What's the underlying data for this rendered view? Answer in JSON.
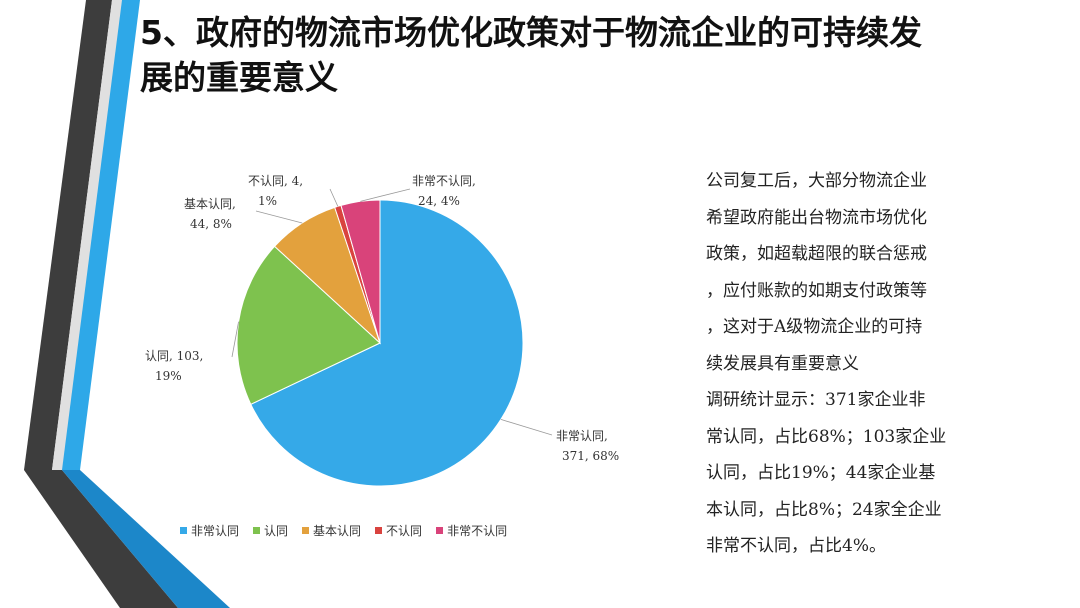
{
  "slide": {
    "title_line1": "5、政府的物流市场优化政策对于物流企业的可持续发",
    "title_line2": "展的重要意义",
    "colors": {
      "blue_accent": "#2ea8e8",
      "dark_stripe": "#3a3a3a",
      "light_stripe": "#d9d9d9"
    }
  },
  "chart_data": {
    "type": "pie",
    "categories": [
      "非常认同",
      "认同",
      "基本认同",
      "不认同",
      "非常不认同"
    ],
    "values": [
      371,
      103,
      44,
      4,
      24
    ],
    "percent_labels": [
      "68%",
      "19%",
      "8%",
      "1%",
      "4%"
    ],
    "colors": [
      "#35a9e8",
      "#7ec24e",
      "#e3a13d",
      "#d9433f",
      "#d9437a"
    ],
    "data_labels": [
      [
        "非常认同,",
        "371, 68%"
      ],
      [
        "认同, 103,",
        "19%"
      ],
      [
        "基本认同,",
        "44, 8%"
      ],
      [
        "不认同, 4,",
        "1%"
      ],
      [
        "非常不认同,",
        "24, 4%"
      ]
    ],
    "legend_position": "bottom",
    "title": ""
  },
  "body": {
    "lines": [
      "公司复工后，大部分物流企业",
      "希望政府能出台物流市场优化",
      "政策，如超载超限的联合惩戒",
      "，应付账款的如期支付政策等",
      "，这对于A级物流企业的可持",
      "续发展具有重要意义",
      "调研统计显示：371家企业非",
      "常认同，占比68%；103家企业",
      "认同，占比19%；44家企业基",
      "本认同，占比8%；24家全企业",
      "非常不认同，占比4%。"
    ]
  }
}
